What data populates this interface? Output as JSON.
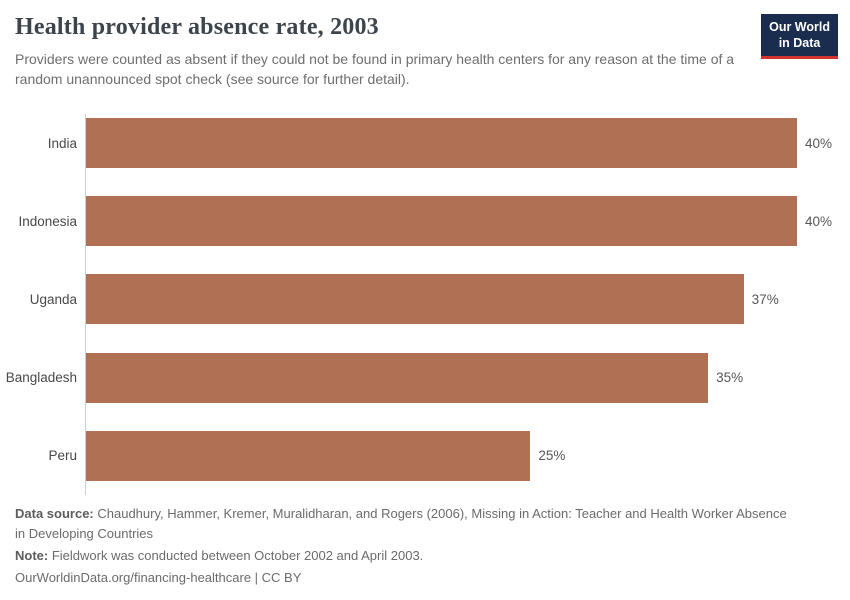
{
  "header": {
    "title": "Health provider absence rate, 2003",
    "subtitle": "Providers were counted as absent if they could not be found in primary health centers for any reason at the time of a random unannounced spot check (see source for further detail).",
    "logo": {
      "line1": "Our World",
      "line2": "in Data"
    }
  },
  "chart_data": {
    "type": "bar",
    "orientation": "horizontal",
    "title": "Health provider absence rate, 2003",
    "categories": [
      "India",
      "Indonesia",
      "Uganda",
      "Bangladesh",
      "Peru"
    ],
    "values": [
      40,
      40,
      37,
      35,
      25
    ],
    "value_labels": [
      "40%",
      "40%",
      "37%",
      "35%",
      "25%"
    ],
    "unit": "%",
    "xlim": [
      0,
      40
    ],
    "grid": false,
    "legend": false,
    "bar_color": "#af7053",
    "axis_line_color": "#cfcfcf"
  },
  "footer": {
    "data_source_label": "Data source:",
    "data_source_text": " Chaudhury, Hammer, Kremer, Muralidharan, and Rogers (2006), Missing in Action: Teacher and Health Worker Absence in Developing Countries",
    "note_label": "Note:",
    "note_text": " Fieldwork was conducted between October 2002 and April 2003.",
    "attribution": "OurWorldinData.org/financing-healthcare | CC BY"
  },
  "colors": {
    "title": "#3d454c",
    "subtitle": "#6e6e6e",
    "logo_bg": "#1b2d4e",
    "logo_accent": "#d0342c",
    "footer_text": "#6b6b6b"
  }
}
